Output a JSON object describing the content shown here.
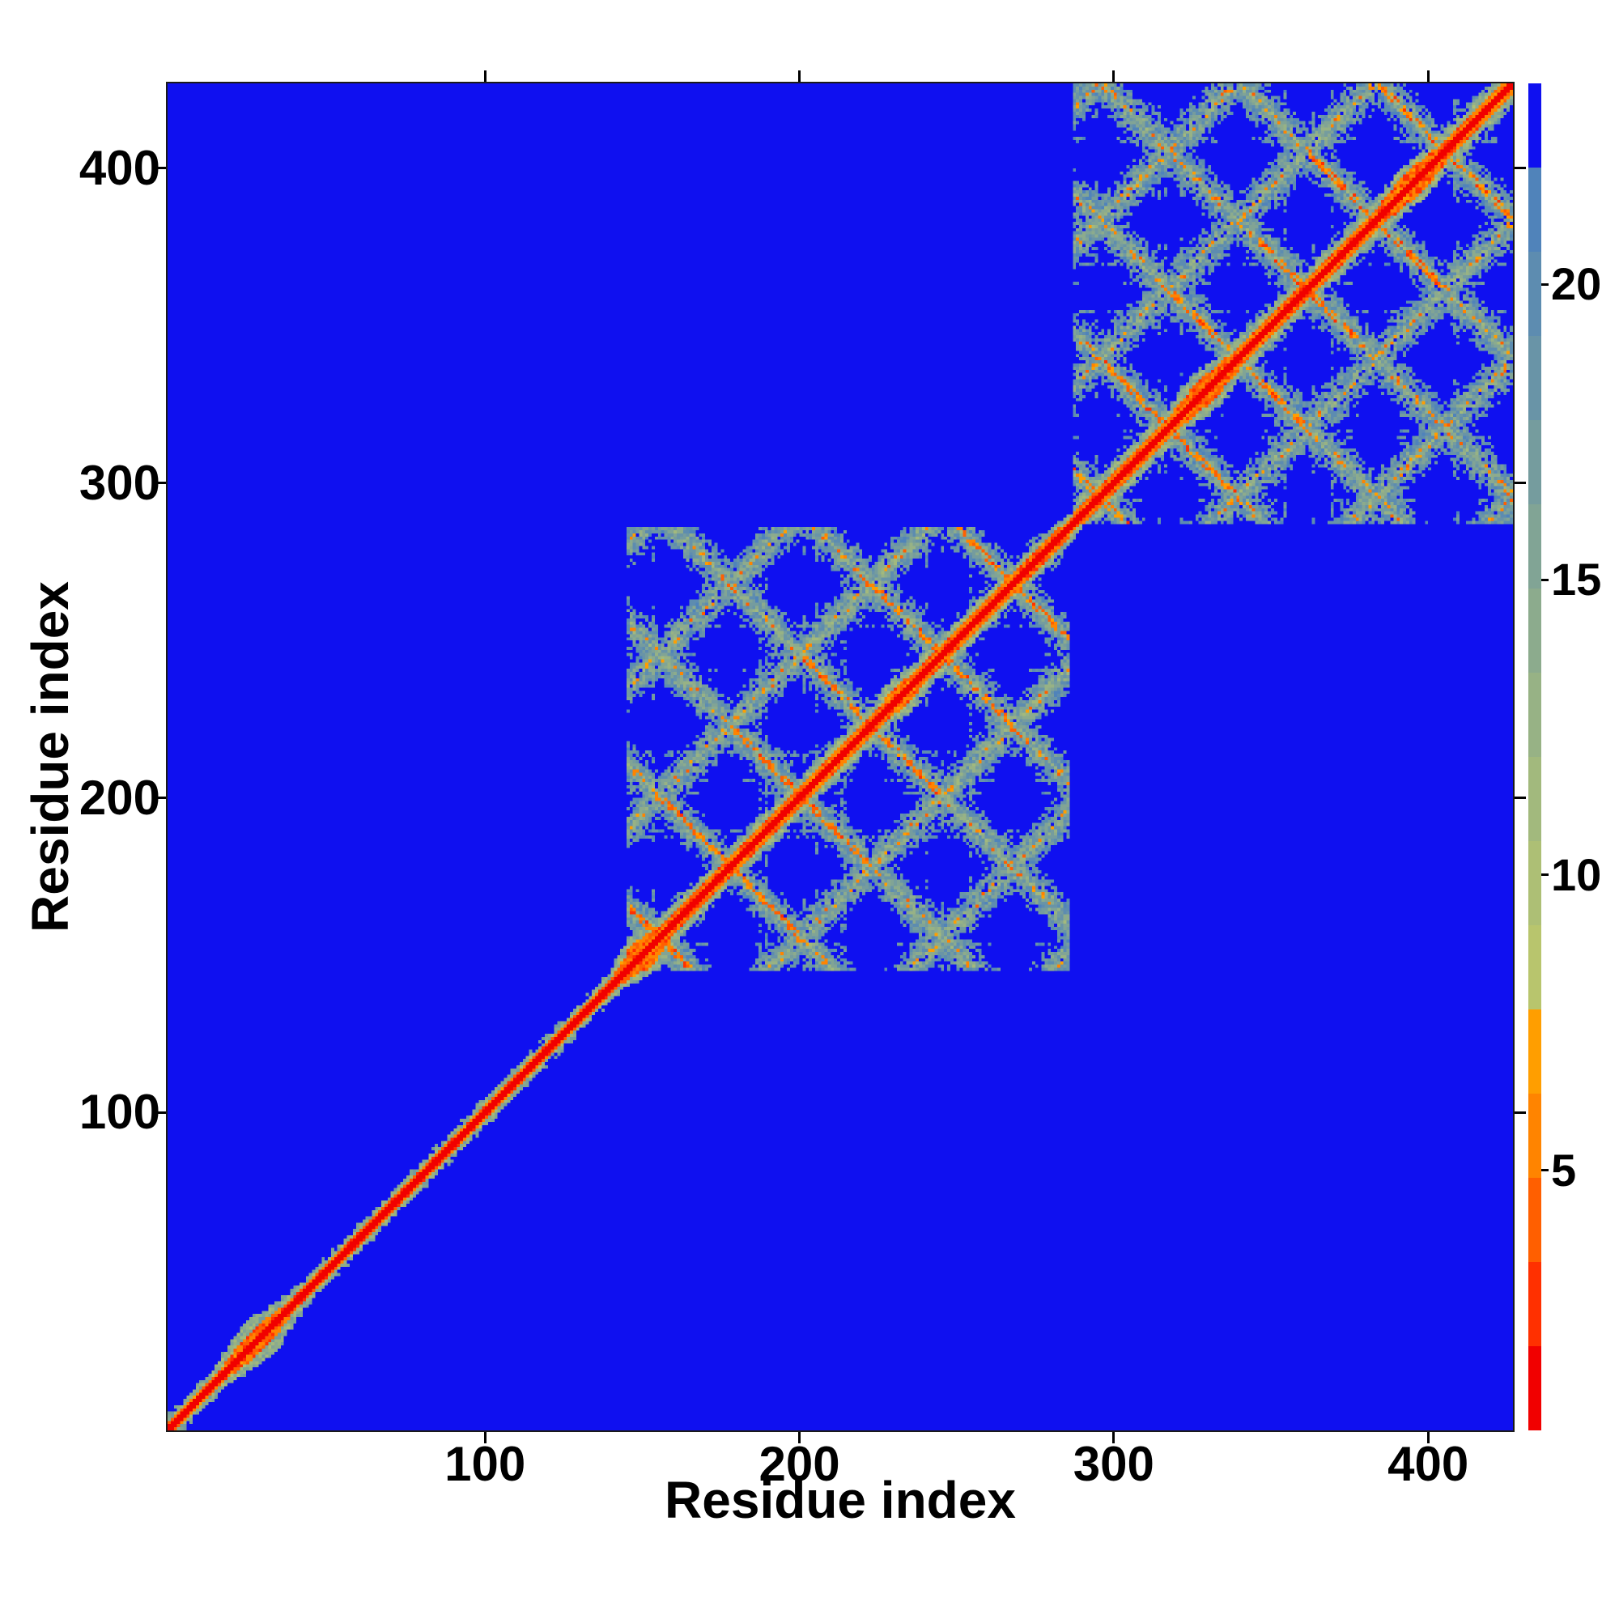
{
  "chart_data": {
    "type": "heatmap",
    "title": "",
    "xlabel": "Residue index",
    "ylabel": "Residue index",
    "x_ticks": [
      100,
      200,
      300,
      400
    ],
    "y_ticks": [
      100,
      200,
      300,
      400
    ],
    "axis_range": [
      -1,
      427
    ],
    "grid": false,
    "legend": "colorbar-right",
    "colorbar": {
      "ticks": [
        5,
        10,
        15,
        20
      ],
      "vmin": 0.6,
      "vmax": 23.4,
      "n_bands": 16,
      "colors_low_to_high": [
        "#f10000",
        "#ff3000",
        "#ff5f00",
        "#ff8400",
        "#ff9e00",
        "#b8c56d",
        "#adbf75",
        "#a2b97d",
        "#97b285",
        "#8cab8d",
        "#81a495",
        "#759c9e",
        "#6994a7",
        "#5d8cb0",
        "#5083ba",
        "#0f10f0"
      ]
    },
    "matrix": {
      "size": 428,
      "units": "inter-residue distance map; red = near (diagonal self-contacts), blue = far (background)",
      "diagonal_value": 1.0,
      "background_value": 23.4,
      "pattern": {
        "seed": 7.31,
        "diag": {
          "core_value": 1.0,
          "fringe_value": 3.0,
          "fringe_jitter": 3.4,
          "halo_value": 10.0,
          "halo_jitter": 7.0,
          "base_halo": 3.4,
          "base_fringe": 2.2
        },
        "diag_blobs": [
          {
            "c": 28,
            "w": 6,
            "halo": 5.0,
            "orange": 2.6
          },
          {
            "c": 150,
            "w": 4,
            "halo": 4.6,
            "orange": 3.4
          },
          {
            "c": 233,
            "w": 3,
            "halo": 2.0,
            "orange": 1.2
          },
          {
            "c": 330,
            "w": 4,
            "halo": 2.2,
            "orange": 1.6
          },
          {
            "c": 396,
            "w": 4,
            "halo": 2.4,
            "orange": 1.8
          }
        ],
        "domains": [
          {
            "start": 146,
            "end": 286,
            "period": 45,
            "offset": 20,
            "width": 5.2,
            "fringe_extra": 1.2,
            "halo_extra": 1.6
          },
          {
            "start": 288,
            "end": 427,
            "period": 44,
            "offset": 16,
            "width": 5.6,
            "fringe_extra": 1.6,
            "halo_extra": 2.0
          }
        ],
        "orange_chain": {
          "reach": 0.95,
          "prob": 0.56,
          "value": 3.2,
          "jitter": 3.8
        },
        "streaks": {
          "prob": 0.935,
          "value": 13.0,
          "jitter": 8.0
        }
      }
    }
  }
}
